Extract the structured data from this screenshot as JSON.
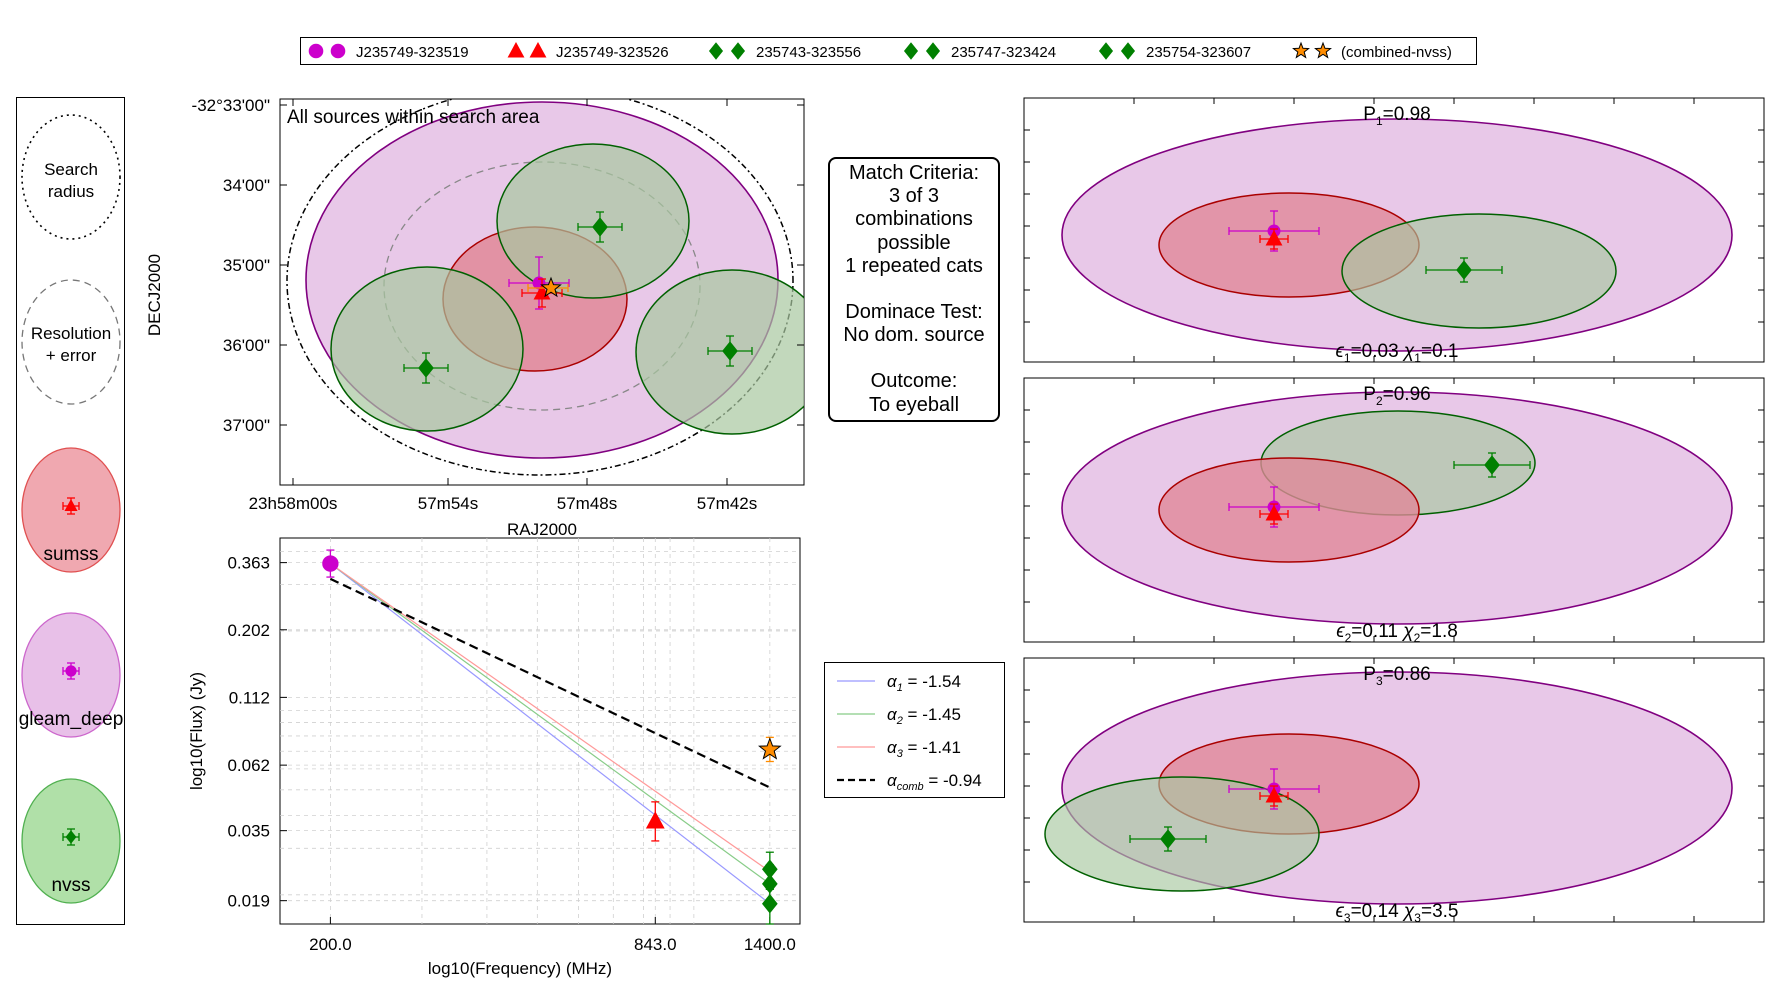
{
  "legend": {
    "entries": [
      {
        "label": "J235749-323519",
        "marker": "circle",
        "color": "#cc00cc"
      },
      {
        "label": "J235749-323526",
        "marker": "triangle",
        "color": "#ff0000"
      },
      {
        "label": "235743-323556",
        "marker": "diamond",
        "color": "#008000"
      },
      {
        "label": "235747-323424",
        "marker": "diamond",
        "color": "#008000"
      },
      {
        "label": "235754-323607",
        "marker": "diamond",
        "color": "#008000"
      },
      {
        "label": "(combined-nvss)",
        "marker": "star",
        "color": "#ff8c00"
      }
    ]
  },
  "key_panel": {
    "search_label_lines": [
      "Search",
      "radius"
    ],
    "resolution_label_lines": [
      "Resolution",
      "+ error"
    ],
    "catalogs": [
      {
        "name": "sumss",
        "fill": "#f0a8b0",
        "edge": "#e05050",
        "marker": "triangle",
        "color": "#ff0000"
      },
      {
        "name": "gleam_deep",
        "fill": "#e8c0e8",
        "edge": "#cc66cc",
        "marker": "circle",
        "color": "#cc00cc"
      },
      {
        "name": "nvss",
        "fill": "#b0e0a8",
        "edge": "#50b050",
        "marker": "diamond",
        "color": "#008000"
      }
    ]
  },
  "sky_plot": {
    "annotation": "All sources within search area",
    "xlabel": "RAJ2000",
    "ylabel": "DECJ2000",
    "xticks": [
      "23h58m00s",
      "57m54s",
      "57m48s",
      "57m42s"
    ],
    "yticks": [
      "-32°33'00\"",
      "34'00\"",
      "35'00\"",
      "36'00\"",
      "37'00\""
    ]
  },
  "match_criteria": {
    "lines": [
      "Match Criteria:",
      "3 of 3",
      "combinations",
      "possible",
      "1 repeated cats",
      "",
      "Dominace Test:",
      "No dom. source",
      "",
      "Outcome:",
      "To eyeball"
    ]
  },
  "chart_data": {
    "type": "scatter",
    "xlabel": "log10(Frequency) (MHz)",
    "ylabel": "log10(Flux) (Jy)",
    "xscale": "log",
    "yscale": "log",
    "x_ticks": [
      200.0,
      843.0,
      1400.0
    ],
    "x_tick_labels": [
      "200.0",
      "843.0",
      "1400.0"
    ],
    "y_ticks": [
      0.019,
      0.035,
      0.062,
      0.112,
      0.202,
      0.363
    ],
    "y_tick_labels": [
      "0.019",
      "0.035",
      "0.062",
      "0.112",
      "0.202",
      "0.363"
    ],
    "grid": true,
    "points": [
      {
        "source": "gleam_deep",
        "freq": 200.0,
        "flux": 0.36,
        "err_low": 0.32,
        "err_high": 0.405,
        "marker": "circle",
        "color": "#cc00cc"
      },
      {
        "source": "sumss",
        "freq": 843.0,
        "flux": 0.038,
        "err_low": 0.032,
        "err_high": 0.045,
        "marker": "triangle",
        "color": "#ff0000"
      },
      {
        "source": "nvss 235747-323424",
        "freq": 1400.0,
        "flux": 0.025,
        "err_low": 0.021,
        "err_high": 0.029,
        "marker": "diamond",
        "color": "#008000"
      },
      {
        "source": "nvss 235743-323556",
        "freq": 1400.0,
        "flux": 0.022,
        "err_low": 0.019,
        "err_high": 0.026,
        "marker": "diamond",
        "color": "#008000"
      },
      {
        "source": "nvss 235754-323607",
        "freq": 1400.0,
        "flux": 0.0185,
        "err_low": 0.0155,
        "err_high": 0.021,
        "marker": "diamond",
        "color": "#008000"
      },
      {
        "source": "combined-nvss",
        "freq": 1400.0,
        "flux": 0.071,
        "err_low": 0.064,
        "err_high": 0.079,
        "marker": "star",
        "color": "#ff8c00"
      }
    ],
    "fits": [
      {
        "label": "-1.54",
        "color": "#9999ff",
        "style": "solid",
        "start": [
          200.0,
          0.36
        ],
        "end": [
          1400.0,
          0.0185
        ]
      },
      {
        "label": "-1.45",
        "color": "#88cc88",
        "style": "solid",
        "start": [
          200.0,
          0.36
        ],
        "end": [
          1400.0,
          0.022
        ]
      },
      {
        "label": "-1.41",
        "color": "#ff9999",
        "style": "solid",
        "start": [
          200.0,
          0.36
        ],
        "end": [
          1400.0,
          0.0245
        ]
      },
      {
        "label": "-0.94",
        "color": "#000000",
        "style": "dashed",
        "start": [
          200.0,
          0.315
        ],
        "end": [
          1400.0,
          0.051
        ]
      }
    ],
    "fit_legend": [
      {
        "sym": "α",
        "sub": "1",
        "label": " = -1.54",
        "color": "#9999ff",
        "dash": false
      },
      {
        "sym": "α",
        "sub": "2",
        "label": " = -1.45",
        "color": "#88cc88",
        "dash": false
      },
      {
        "sym": "α",
        "sub": "3",
        "label": " = -1.41",
        "color": "#ff9999",
        "dash": false
      },
      {
        "sym": "α",
        "sub": "comb",
        "label": " = -0.94",
        "color": "#000000",
        "dash": true
      }
    ]
  },
  "combination_panels": [
    {
      "p_label": "P",
      "p_sub": "1",
      "p_value": "=0.98",
      "e_sub": "1",
      "e_value": "=0.03",
      "chi_sub": "1",
      "chi_value": "=0.1"
    },
    {
      "p_label": "P",
      "p_sub": "2",
      "p_value": "=0.96",
      "e_sub": "2",
      "e_value": "=0.11",
      "chi_sub": "2",
      "chi_value": "=1.8"
    },
    {
      "p_label": "P",
      "p_sub": "3",
      "p_value": "=0.86",
      "e_sub": "3",
      "e_value": "=0.14",
      "chi_sub": "3",
      "chi_value": "=3.5"
    }
  ],
  "colors": {
    "gleam_fill": "#e8c8e8",
    "gleam_edge": "#800080",
    "sumss_fill": "#e08898",
    "sumss_edge": "#aa0000",
    "nvss_fill": "#a8c8a0",
    "nvss_edge": "#006000"
  }
}
